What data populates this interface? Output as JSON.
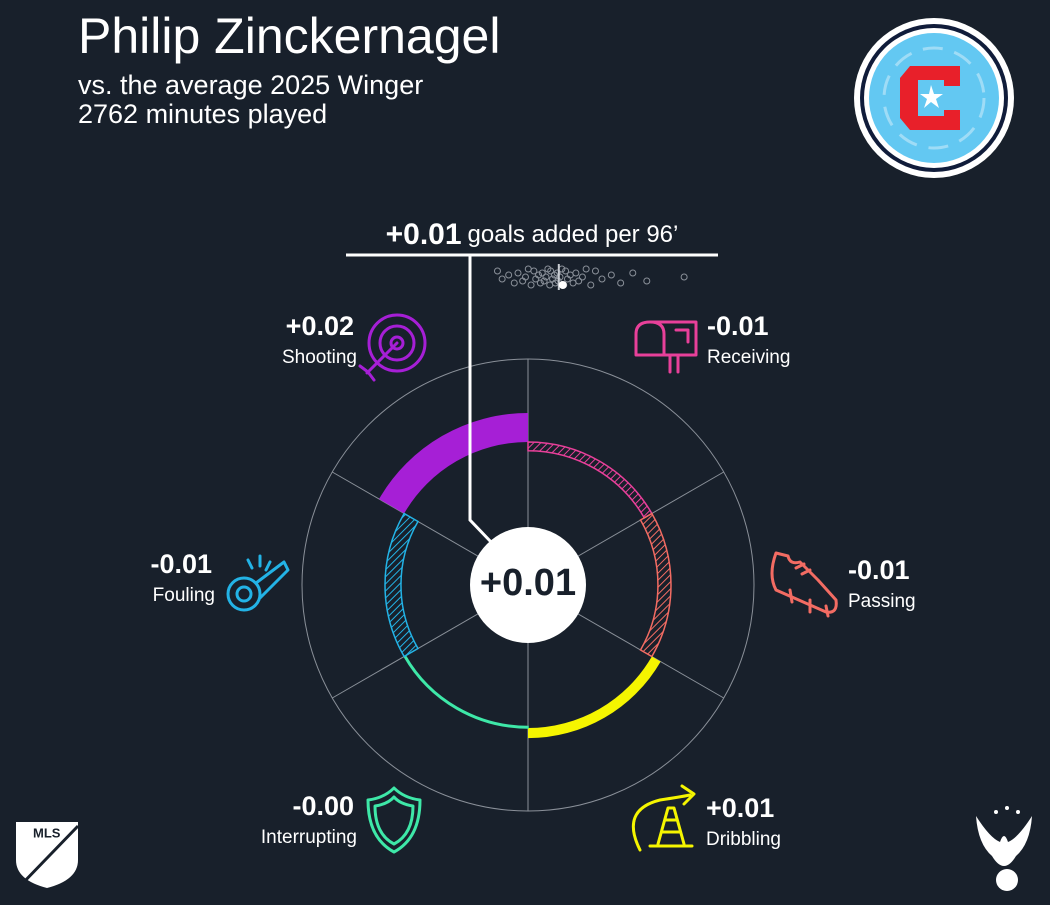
{
  "chart_data": {
    "type": "radial_bar",
    "title": "Philip Zinckernagel",
    "subtitle": "vs. the average 2025 Winger",
    "minutes": "2762 minutes played",
    "total": 0.01,
    "total_label": "+0.01",
    "total_caption": "goals added per 96’",
    "categories": [
      "Shooting",
      "Receiving",
      "Passing",
      "Dribbling",
      "Interrupting",
      "Fouling"
    ],
    "values": [
      0.02,
      -0.006,
      -0.009,
      0.007,
      -0.001,
      -0.011
    ],
    "value_labels": [
      "+0.02",
      "-0.01",
      "-0.01",
      "+0.01",
      "-0.00",
      "-0.01"
    ],
    "colors": [
      "#a61fd6",
      "#e8409a",
      "#f36c63",
      "#f5f500",
      "#3ee8a8",
      "#23b3e6"
    ],
    "distribution": {
      "xlim": [
        -0.083,
        0.157
      ],
      "values": [
        -0.06,
        -0.055,
        -0.048,
        -0.042,
        -0.038,
        -0.033,
        -0.03,
        -0.027,
        -0.024,
        -0.021,
        -0.019,
        -0.016,
        -0.014,
        -0.012,
        -0.01,
        -0.008,
        -0.006,
        -0.004,
        -0.003,
        -0.001,
        0.001,
        0.002,
        0.004,
        0.005,
        0.007,
        0.009,
        0.011,
        0.013,
        0.015,
        0.018,
        0.021,
        0.024,
        0.027,
        0.031,
        0.035,
        0.04,
        0.045,
        0.052,
        0.062,
        0.072,
        0.085,
        0.1,
        0.14
      ],
      "highlight": 0.01
    }
  }
}
